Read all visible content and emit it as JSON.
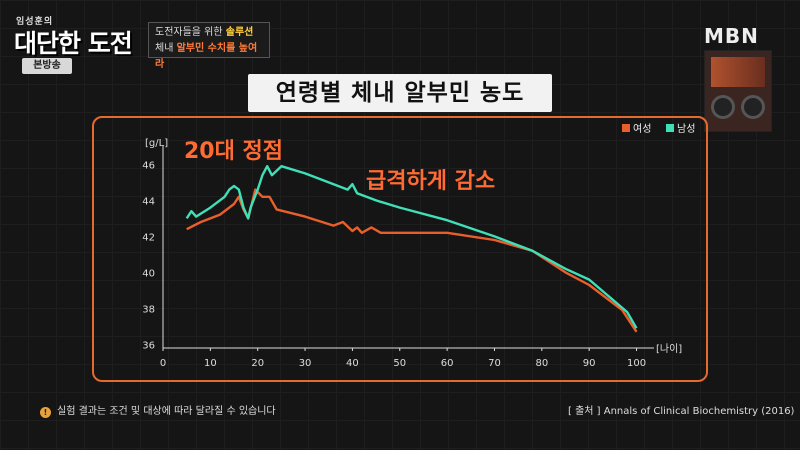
{
  "header": {
    "show_host": "임성훈의",
    "show_title": "대단한 도전",
    "badge": "본방송",
    "caption_line1_text": "도전자들을 위한",
    "caption_line1_highlight": "솔루션",
    "caption_line2_text": "체내",
    "caption_line2_highlight": "알부민 수치를 높여라",
    "channel": "MBN"
  },
  "chart_data": {
    "type": "line",
    "title": "연령별 체내 알부민 농도",
    "ylabel": "[g/L]",
    "xlabel": "[나이]",
    "xticks": [
      0,
      10,
      20,
      30,
      40,
      50,
      60,
      70,
      80,
      90,
      100
    ],
    "yticks": [
      36,
      38,
      40,
      42,
      44,
      46
    ],
    "xlim": [
      0,
      102
    ],
    "ylim": [
      35.8,
      46.8
    ],
    "grid": false,
    "legend_position": "top-right",
    "annotations": [
      "20대 정점",
      "급격하게 감소"
    ],
    "series": [
      {
        "name": "여성",
        "color": "#e85f2c",
        "points": [
          [
            5,
            42.4
          ],
          [
            8,
            42.8
          ],
          [
            12,
            43.2
          ],
          [
            15,
            43.8
          ],
          [
            16,
            44.2
          ],
          [
            17,
            43.5
          ],
          [
            18,
            43.0
          ],
          [
            19.5,
            44.6
          ],
          [
            21,
            44.2
          ],
          [
            22.5,
            44.2
          ],
          [
            24,
            43.5
          ],
          [
            30,
            43.1
          ],
          [
            36,
            42.6
          ],
          [
            38,
            42.8
          ],
          [
            40,
            42.3
          ],
          [
            41,
            42.5
          ],
          [
            42,
            42.2
          ],
          [
            44,
            42.5
          ],
          [
            46,
            42.2
          ],
          [
            50,
            42.2
          ],
          [
            60,
            42.2
          ],
          [
            70,
            41.8
          ],
          [
            78,
            41.2
          ],
          [
            85,
            40.0
          ],
          [
            90,
            39.3
          ],
          [
            97,
            37.9
          ],
          [
            100,
            36.7
          ]
        ]
      },
      {
        "name": "남성",
        "color": "#3fe0b8",
        "points": [
          [
            5,
            43.0
          ],
          [
            6,
            43.4
          ],
          [
            7,
            43.1
          ],
          [
            10,
            43.6
          ],
          [
            13,
            44.2
          ],
          [
            14,
            44.6
          ],
          [
            15,
            44.8
          ],
          [
            16,
            44.6
          ],
          [
            17,
            43.6
          ],
          [
            18,
            43.0
          ],
          [
            18.5,
            43.6
          ],
          [
            20,
            44.6
          ],
          [
            21,
            45.4
          ],
          [
            22,
            45.9
          ],
          [
            23,
            45.4
          ],
          [
            25,
            45.9
          ],
          [
            30,
            45.5
          ],
          [
            35,
            45.0
          ],
          [
            39,
            44.6
          ],
          [
            40,
            44.9
          ],
          [
            41,
            44.4
          ],
          [
            45,
            44.0
          ],
          [
            50,
            43.6
          ],
          [
            60,
            42.9
          ],
          [
            70,
            42.0
          ],
          [
            78,
            41.2
          ],
          [
            85,
            40.2
          ],
          [
            90,
            39.6
          ],
          [
            98,
            37.8
          ],
          [
            100,
            36.9
          ]
        ]
      }
    ]
  },
  "footer": {
    "disclaimer": "실험 결과는 조건 및 대상에 따라 달라질 수 있습니다",
    "source": "[ 출처 ] Annals of Clinical Biochemistry (2016)"
  }
}
